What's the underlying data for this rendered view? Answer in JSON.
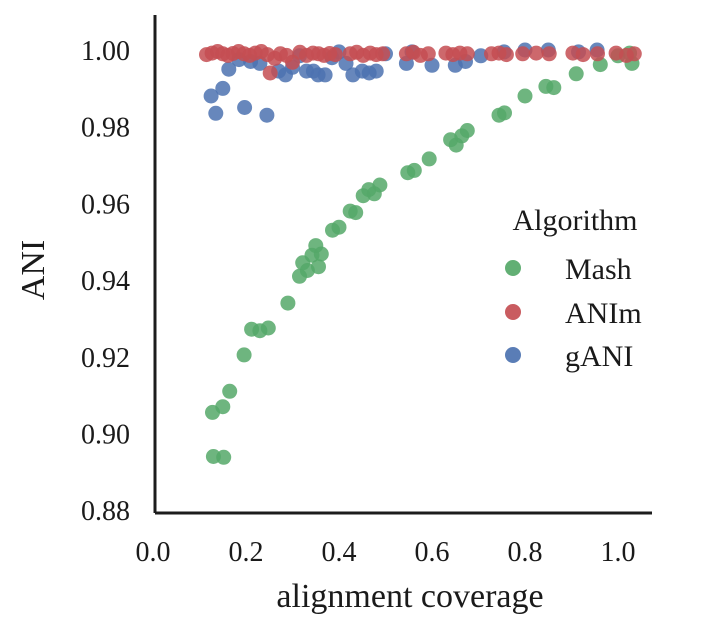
{
  "figure": {
    "background": "#ffffff",
    "text_color": "#1a1a1a",
    "spine_color": "#1c1c1c"
  },
  "chart_data": {
    "type": "scatter",
    "title": "",
    "xlabel": "alignment coverage",
    "ylabel": "ANI",
    "xlim": [
      0.0,
      1.08
    ],
    "ylim": [
      0.88,
      1.005
    ],
    "grid": false,
    "xticks": {
      "values": [
        0.0,
        0.2,
        0.4,
        0.6,
        0.8,
        1.0
      ],
      "labels": [
        "0.0",
        "0.2",
        "0.4",
        "0.6",
        "0.8",
        "1.0"
      ]
    },
    "yticks": {
      "values": [
        1.0,
        0.98,
        0.96,
        0.94,
        0.92,
        0.9,
        0.88
      ],
      "labels": [
        "1.00",
        "0.98",
        "0.96",
        "0.94",
        "0.92",
        "0.90",
        "0.88"
      ]
    },
    "legend": {
      "title": "Algorithm",
      "position": "center-right"
    },
    "series": [
      {
        "name": "Mash",
        "color": "#55A868",
        "points": [
          [
            0.13,
            0.894
          ],
          [
            0.152,
            0.8938
          ],
          [
            0.128,
            0.9055
          ],
          [
            0.15,
            0.907
          ],
          [
            0.165,
            0.911
          ],
          [
            0.196,
            0.9205
          ],
          [
            0.212,
            0.9272
          ],
          [
            0.23,
            0.9268
          ],
          [
            0.248,
            0.9275
          ],
          [
            0.29,
            0.934
          ],
          [
            0.315,
            0.941
          ],
          [
            0.322,
            0.9445
          ],
          [
            0.332,
            0.9425
          ],
          [
            0.342,
            0.9465
          ],
          [
            0.35,
            0.949
          ],
          [
            0.356,
            0.9435
          ],
          [
            0.362,
            0.9468
          ],
          [
            0.386,
            0.953
          ],
          [
            0.4,
            0.9538
          ],
          [
            0.424,
            0.958
          ],
          [
            0.436,
            0.9576
          ],
          [
            0.452,
            0.962
          ],
          [
            0.464,
            0.9636
          ],
          [
            0.476,
            0.9625
          ],
          [
            0.488,
            0.9648
          ],
          [
            0.548,
            0.968
          ],
          [
            0.562,
            0.9686
          ],
          [
            0.594,
            0.9716
          ],
          [
            0.64,
            0.9766
          ],
          [
            0.652,
            0.9752
          ],
          [
            0.664,
            0.9776
          ],
          [
            0.676,
            0.979
          ],
          [
            0.744,
            0.983
          ],
          [
            0.756,
            0.9836
          ],
          [
            0.8,
            0.988
          ],
          [
            0.845,
            0.9905
          ],
          [
            0.862,
            0.9902
          ],
          [
            0.91,
            0.9938
          ],
          [
            0.962,
            0.9962
          ],
          [
            1.0,
            0.9985
          ],
          [
            1.03,
            0.9965
          ],
          [
            1.025,
            0.9992
          ]
        ]
      },
      {
        "name": "ANIm",
        "color": "#C44E52",
        "points": [
          [
            0.115,
            0.9988
          ],
          [
            0.127,
            0.9992
          ],
          [
            0.139,
            0.9996
          ],
          [
            0.15,
            0.999
          ],
          [
            0.161,
            0.9986
          ],
          [
            0.172,
            0.9991
          ],
          [
            0.184,
            0.9996
          ],
          [
            0.196,
            0.999
          ],
          [
            0.208,
            0.9986
          ],
          [
            0.22,
            0.9992
          ],
          [
            0.233,
            0.9996
          ],
          [
            0.246,
            0.9988
          ],
          [
            0.252,
            0.994
          ],
          [
            0.262,
            0.9978
          ],
          [
            0.274,
            0.999
          ],
          [
            0.287,
            0.9986
          ],
          [
            0.3,
            0.9968
          ],
          [
            0.316,
            0.9994
          ],
          [
            0.33,
            0.9986
          ],
          [
            0.344,
            0.9992
          ],
          [
            0.356,
            0.999
          ],
          [
            0.368,
            0.9986
          ],
          [
            0.38,
            0.9991
          ],
          [
            0.392,
            0.9988
          ],
          [
            0.424,
            0.999
          ],
          [
            0.438,
            0.9994
          ],
          [
            0.452,
            0.9986
          ],
          [
            0.467,
            0.9992
          ],
          [
            0.48,
            0.9988
          ],
          [
            0.494,
            0.999
          ],
          [
            0.545,
            0.999
          ],
          [
            0.56,
            0.9994
          ],
          [
            0.575,
            0.9986
          ],
          [
            0.592,
            0.999
          ],
          [
            0.63,
            0.9992
          ],
          [
            0.645,
            0.9988
          ],
          [
            0.66,
            0.9992
          ],
          [
            0.676,
            0.999
          ],
          [
            0.728,
            0.999
          ],
          [
            0.744,
            0.9992
          ],
          [
            0.76,
            0.9988
          ],
          [
            0.795,
            0.999
          ],
          [
            0.824,
            0.9992
          ],
          [
            0.852,
            0.999
          ],
          [
            0.903,
            0.9992
          ],
          [
            0.925,
            0.9988
          ],
          [
            0.956,
            0.999
          ],
          [
            0.996,
            0.9992
          ],
          [
            1.018,
            0.9986
          ],
          [
            1.035,
            0.999
          ]
        ]
      },
      {
        "name": "gANI",
        "color": "#4C72B0",
        "points": [
          [
            0.125,
            0.988
          ],
          [
            0.135,
            0.9835
          ],
          [
            0.15,
            0.99
          ],
          [
            0.163,
            0.995
          ],
          [
            0.185,
            0.9975
          ],
          [
            0.197,
            0.985
          ],
          [
            0.21,
            0.997
          ],
          [
            0.23,
            0.9965
          ],
          [
            0.245,
            0.983
          ],
          [
            0.27,
            0.9945
          ],
          [
            0.285,
            0.9935
          ],
          [
            0.3,
            0.9955
          ],
          [
            0.315,
            0.9985
          ],
          [
            0.33,
            0.9945
          ],
          [
            0.345,
            0.9945
          ],
          [
            0.355,
            0.9935
          ],
          [
            0.37,
            0.9935
          ],
          [
            0.385,
            0.998
          ],
          [
            0.4,
            0.9995
          ],
          [
            0.415,
            0.9965
          ],
          [
            0.43,
            0.9935
          ],
          [
            0.45,
            0.9945
          ],
          [
            0.465,
            0.994
          ],
          [
            0.48,
            0.9945
          ],
          [
            0.5,
            0.999
          ],
          [
            0.545,
            0.9965
          ],
          [
            0.557,
            0.9995
          ],
          [
            0.6,
            0.996
          ],
          [
            0.65,
            0.996
          ],
          [
            0.672,
            0.997
          ],
          [
            0.705,
            0.9985
          ],
          [
            0.755,
            0.9995
          ],
          [
            0.8,
            1.0
          ],
          [
            0.85,
            1.0
          ],
          [
            0.915,
            0.9995
          ],
          [
            0.955,
            1.0
          ]
        ]
      }
    ]
  }
}
